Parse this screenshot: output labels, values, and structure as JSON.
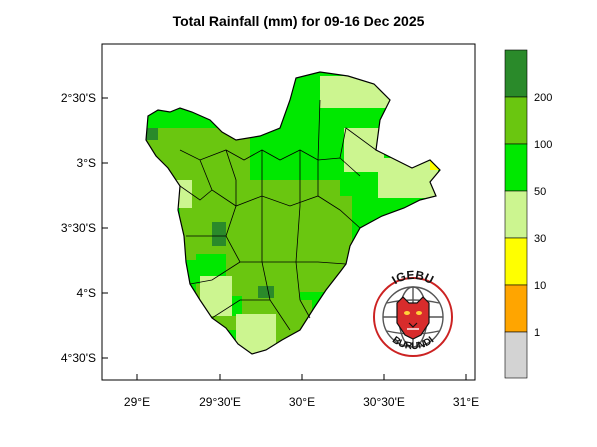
{
  "title": "Total Rainfall (mm) for 09-16 Dec 2025",
  "axes": {
    "y_ticks": [
      "2°30'S",
      "3°S",
      "3°30'S",
      "4°S",
      "4°30'S"
    ],
    "x_ticks": [
      "29°E",
      "29°30'E",
      "30°E",
      "30°30'E",
      "31°E"
    ]
  },
  "legend": {
    "orientation": "vertical",
    "classes": [
      {
        "label": "",
        "color": "#2a8a2a"
      },
      {
        "label": "200",
        "color": "#6ac610"
      },
      {
        "label": "100",
        "color": "#00e800"
      },
      {
        "label": "50",
        "color": "#ccf590"
      },
      {
        "label": "30",
        "color": "#ffff00"
      },
      {
        "label": "10",
        "color": "#ffa500"
      },
      {
        "label": "1",
        "color": "#d3d3d3"
      }
    ]
  },
  "logo": {
    "top_text": "IGEBU",
    "bottom_text": "BURUNDI",
    "colors": {
      "ring": "#cc2222",
      "globe": "#555555",
      "text": "#111111"
    }
  },
  "map_colors": {
    "very_heavy": "#2a8a2a",
    "heavy": "#6ac610",
    "moderate": "#00e800",
    "light": "#ccf590",
    "low": "#ffff00",
    "outline": "#000000"
  }
}
